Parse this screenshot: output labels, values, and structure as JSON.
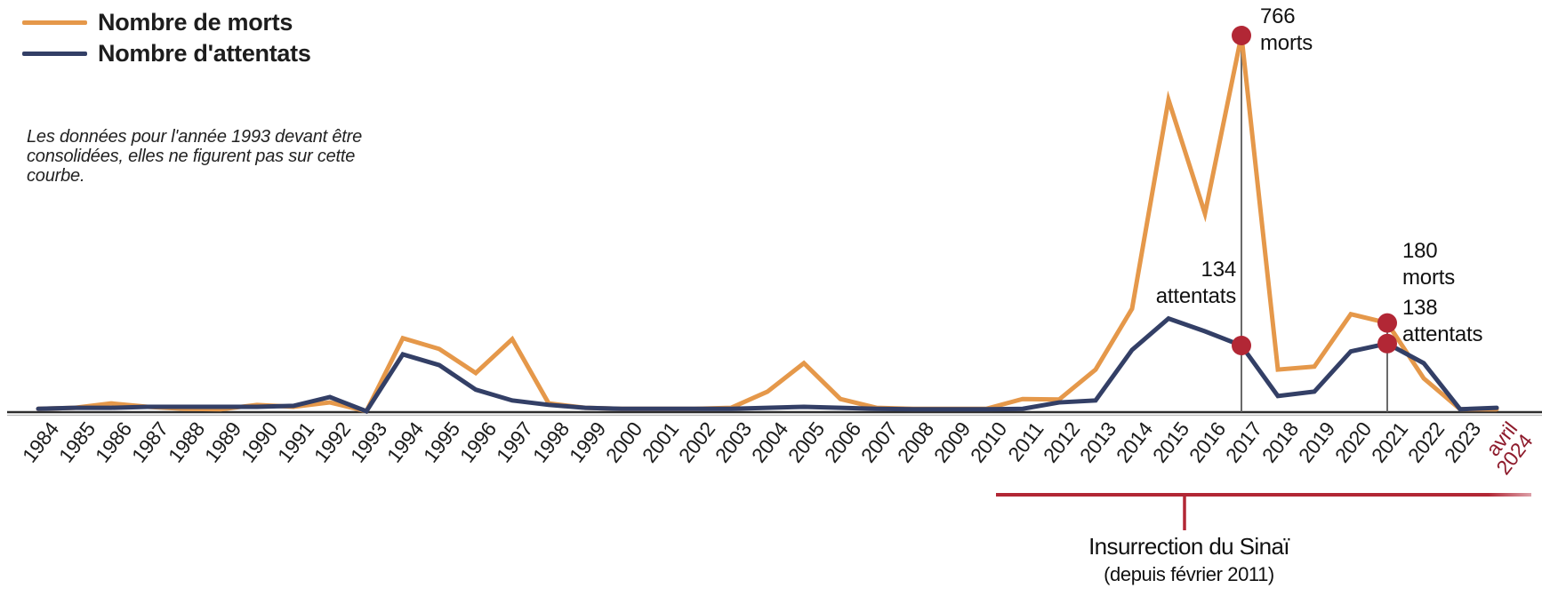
{
  "note": "Les données pour l'année 1993 devant être\nconsolidées, elles ne figurent pas sur cette\ncourbe.",
  "bracket": {
    "label": "Insurrection du Sinaï",
    "sublabel": "(depuis février 2011)",
    "color": "#B22735",
    "from_category": "2011",
    "to_category": "avril 2024"
  },
  "chart_data": {
    "type": "line",
    "categories": [
      "1984",
      "1985",
      "1986",
      "1987",
      "1988",
      "1989",
      "1990",
      "1991",
      "1992",
      "1993",
      "1994",
      "1995",
      "1996",
      "1997",
      "1998",
      "1999",
      "2000",
      "2001",
      "2002",
      "2003",
      "2004",
      "2005",
      "2006",
      "2007",
      "2008",
      "2009",
      "2010",
      "2011",
      "2012",
      "2013",
      "2014",
      "2015",
      "2016",
      "2017",
      "2018",
      "2019",
      "2020",
      "2021",
      "2022",
      "2023",
      "avril 2024"
    ],
    "last_category_color": "#8E1B2C",
    "series": [
      {
        "name": "Nombre de morts",
        "color": "#E5984A",
        "values": [
          5,
          7,
          16,
          9,
          5,
          4,
          13,
          9,
          18,
          0,
          149,
          127,
          78,
          147,
          16,
          7,
          5,
          5,
          5,
          7,
          40,
          98,
          25,
          7,
          5,
          5,
          5,
          25,
          24,
          85,
          209,
          635,
          403,
          766,
          85,
          91,
          198,
          180,
          67,
          4,
          4
        ]
      },
      {
        "name": "Nombre d'attentats",
        "color": "#333F66",
        "values": [
          5,
          7,
          7,
          9,
          9,
          9,
          9,
          11,
          29,
          0,
          116,
          94,
          44,
          22,
          13,
          7,
          5,
          5,
          5,
          5,
          7,
          9,
          7,
          5,
          4,
          4,
          4,
          5,
          18,
          22,
          125,
          189,
          163,
          134,
          31,
          40,
          122,
          138,
          98,
          4,
          7
        ]
      }
    ],
    "ylim": [
      0,
      766
    ],
    "grid": false,
    "legend_position": "top-left",
    "dot_color": "#B22735",
    "axis_color": "#2E2E2E",
    "annotations": [
      {
        "id": "morts-2017",
        "lines": [
          "766",
          "morts"
        ],
        "category": "2017",
        "series": 0,
        "value": 766
      },
      {
        "id": "attentats-2017",
        "lines": [
          "134",
          "attentats"
        ],
        "category": "2017",
        "series": 1,
        "value": 134
      },
      {
        "id": "morts-2021",
        "lines": [
          "180",
          "morts"
        ],
        "category": "2021",
        "series": 0,
        "value": 180
      },
      {
        "id": "attentats-2021",
        "lines": [
          "138",
          "attentats"
        ],
        "category": "2021",
        "series": 1,
        "value": 138
      }
    ],
    "reference_lines": [
      {
        "category": "2017",
        "from_value": 766
      },
      {
        "category": "2021",
        "from_value": 180
      }
    ]
  }
}
